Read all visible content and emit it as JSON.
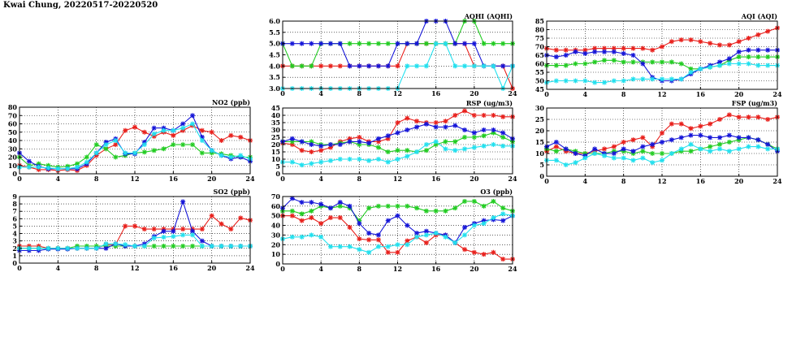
{
  "page": {
    "title": "Kwai Chung, 20220517-20220520"
  },
  "colors": {
    "red": "#e8201c",
    "green": "#22cc22",
    "blue": "#1515d8",
    "cyan": "#22e0ee"
  },
  "chart_data": [
    {
      "id": "aqhi",
      "type": "line",
      "title": "AQHI (AQHI)",
      "xlim": [
        0,
        24
      ],
      "ylim": [
        3.0,
        6.0
      ],
      "xticks": [
        "0",
        "4",
        "8",
        "12",
        "16",
        "20",
        "24"
      ],
      "yticks": [
        "3.0",
        "3.5",
        "4.0",
        "4.5",
        "5.0",
        "5.5",
        "6.0"
      ],
      "x": [
        0,
        1,
        2,
        3,
        4,
        5,
        6,
        7,
        8,
        9,
        10,
        11,
        12,
        13,
        14,
        15,
        16,
        17,
        18,
        19,
        20,
        21,
        22,
        23,
        24
      ],
      "series": [
        {
          "color": "red",
          "values": [
            4,
            4,
            4,
            4,
            4,
            4,
            4,
            4,
            4,
            4,
            4,
            4,
            4,
            5,
            5,
            5,
            5,
            5,
            5,
            5,
            4,
            4,
            4,
            4,
            3
          ]
        },
        {
          "color": "green",
          "values": [
            5,
            4,
            4,
            4,
            5,
            5,
            5,
            5,
            5,
            5,
            5,
            5,
            5,
            5,
            5,
            5,
            5,
            5,
            5,
            6,
            6,
            5,
            5,
            5,
            5
          ]
        },
        {
          "color": "blue",
          "values": [
            5,
            5,
            5,
            5,
            5,
            5,
            5,
            4,
            4,
            4,
            4,
            4,
            5,
            5,
            5,
            6,
            6,
            6,
            5,
            5,
            5,
            4,
            4,
            4,
            4
          ]
        },
        {
          "color": "cyan",
          "values": [
            3,
            3,
            3,
            3,
            3,
            3,
            3,
            3,
            3,
            3,
            3,
            3,
            3,
            4,
            4,
            4,
            5,
            5,
            4,
            4,
            4,
            4,
            4,
            3,
            4
          ]
        }
      ]
    },
    {
      "id": "aqi",
      "type": "line",
      "title": "AQI (AQI)",
      "xlim": [
        0,
        24
      ],
      "ylim": [
        45,
        85
      ],
      "xticks": [
        "0",
        "4",
        "8",
        "12",
        "16",
        "20",
        "24"
      ],
      "yticks": [
        "45",
        "50",
        "55",
        "60",
        "65",
        "70",
        "75",
        "80",
        "85"
      ],
      "x": [
        0,
        1,
        2,
        3,
        4,
        5,
        6,
        7,
        8,
        9,
        10,
        11,
        12,
        13,
        14,
        15,
        16,
        17,
        18,
        19,
        20,
        21,
        22,
        23,
        24
      ],
      "series": [
        {
          "color": "red",
          "values": [
            69,
            68,
            68,
            68,
            68,
            69,
            69,
            69,
            69,
            69,
            69,
            68,
            70,
            73,
            74,
            74,
            73,
            72,
            71,
            71,
            73,
            75,
            77,
            79,
            81
          ]
        },
        {
          "color": "green",
          "values": [
            59,
            59,
            59,
            60,
            60,
            61,
            62,
            62,
            61,
            61,
            61,
            61,
            61,
            61,
            60,
            57,
            57,
            58,
            59,
            62,
            64,
            64,
            64,
            64,
            64
          ]
        },
        {
          "color": "blue",
          "values": [
            65,
            64,
            65,
            67,
            66,
            67,
            67,
            67,
            66,
            65,
            60,
            52,
            50,
            50,
            51,
            54,
            57,
            59,
            61,
            63,
            67,
            68,
            68,
            68,
            68
          ]
        },
        {
          "color": "cyan",
          "values": [
            49,
            50,
            50,
            50,
            50,
            49,
            49,
            50,
            50,
            51,
            51,
            51,
            51,
            51,
            51,
            55,
            57,
            58,
            59,
            60,
            60,
            60,
            59,
            59,
            59
          ]
        }
      ]
    },
    {
      "id": "no2",
      "type": "line",
      "title": "NO2 (ppb)",
      "xlim": [
        0,
        24
      ],
      "ylim": [
        0,
        80
      ],
      "xticks": [
        "0",
        "4",
        "8",
        "12",
        "16",
        "20",
        "24"
      ],
      "yticks": [
        "0",
        "10",
        "20",
        "30",
        "40",
        "50",
        "60",
        "70",
        "80"
      ],
      "x": [
        0,
        1,
        2,
        3,
        4,
        5,
        6,
        7,
        8,
        9,
        10,
        11,
        12,
        13,
        14,
        15,
        16,
        17,
        18,
        19,
        20,
        21,
        22,
        23,
        24
      ],
      "series": [
        {
          "color": "red",
          "values": [
            10,
            8,
            5,
            5,
            4,
            5,
            4,
            10,
            22,
            30,
            35,
            52,
            56,
            50,
            45,
            50,
            46,
            52,
            58,
            52,
            50,
            40,
            46,
            44,
            40
          ]
        },
        {
          "color": "green",
          "values": [
            20,
            10,
            12,
            10,
            8,
            9,
            12,
            20,
            35,
            30,
            20,
            22,
            25,
            26,
            28,
            30,
            35,
            35,
            35,
            25,
            25,
            24,
            22,
            20,
            20
          ]
        },
        {
          "color": "blue",
          "values": [
            25,
            15,
            9,
            6,
            6,
            6,
            6,
            12,
            25,
            38,
            42,
            24,
            24,
            38,
            55,
            55,
            52,
            60,
            70,
            44,
            28,
            22,
            18,
            20,
            15
          ]
        },
        {
          "color": "cyan",
          "values": [
            8,
            8,
            8,
            7,
            6,
            6,
            8,
            14,
            25,
            35,
            40,
            25,
            25,
            35,
            48,
            52,
            52,
            55,
            60,
            40,
            28,
            22,
            20,
            22,
            18
          ]
        }
      ]
    },
    {
      "id": "rsp",
      "type": "line",
      "title": "RSP (ug/m3)",
      "xlim": [
        0,
        24
      ],
      "ylim": [
        0,
        45
      ],
      "xticks": [
        "0",
        "4",
        "8",
        "12",
        "16",
        "20",
        "24"
      ],
      "yticks": [
        "0",
        "5",
        "10",
        "15",
        "20",
        "25",
        "30",
        "35",
        "40",
        "45"
      ],
      "x": [
        0,
        1,
        2,
        3,
        4,
        5,
        6,
        7,
        8,
        9,
        10,
        11,
        12,
        13,
        14,
        15,
        16,
        17,
        18,
        19,
        20,
        21,
        22,
        23,
        24
      ],
      "series": [
        {
          "color": "red",
          "values": [
            21,
            20,
            16,
            15,
            16,
            18,
            22,
            24,
            25,
            22,
            22,
            24,
            35,
            38,
            36,
            35,
            35,
            36,
            40,
            43,
            40,
            40,
            40,
            39,
            39
          ]
        },
        {
          "color": "green",
          "values": [
            22,
            22,
            22,
            22,
            20,
            20,
            21,
            22,
            20,
            20,
            18,
            15,
            16,
            16,
            15,
            16,
            20,
            22,
            22,
            25,
            25,
            26,
            28,
            25,
            22
          ]
        },
        {
          "color": "blue",
          "values": [
            22,
            24,
            22,
            20,
            19,
            20,
            20,
            22,
            22,
            21,
            24,
            26,
            28,
            30,
            32,
            34,
            32,
            32,
            33,
            30,
            28,
            30,
            30,
            28,
            24
          ]
        },
        {
          "color": "cyan",
          "values": [
            8,
            8,
            6,
            7,
            8,
            9,
            10,
            10,
            10,
            9,
            10,
            8,
            10,
            12,
            15,
            20,
            22,
            17,
            16,
            17,
            18,
            19,
            20,
            19,
            19
          ]
        }
      ]
    },
    {
      "id": "fsp",
      "type": "line",
      "title": "FSP (ug/m3)",
      "xlim": [
        0,
        24
      ],
      "ylim": [
        0,
        30
      ],
      "xticks": [
        "0",
        "4",
        "8",
        "12",
        "16",
        "20",
        "24"
      ],
      "yticks": [
        "0",
        "5",
        "10",
        "15",
        "20",
        "25",
        "30"
      ],
      "x": [
        0,
        1,
        2,
        3,
        4,
        5,
        6,
        7,
        8,
        9,
        10,
        11,
        12,
        13,
        14,
        15,
        16,
        17,
        18,
        19,
        20,
        21,
        22,
        23,
        24
      ],
      "series": [
        {
          "color": "red",
          "values": [
            11,
            13,
            11,
            10,
            10,
            11,
            12,
            13,
            15,
            16,
            17,
            13,
            19,
            23,
            23,
            21,
            22,
            23,
            25,
            27,
            26,
            26,
            26,
            25,
            26
          ]
        },
        {
          "color": "green",
          "values": [
            12,
            11,
            12,
            11,
            10,
            10,
            10,
            11,
            11,
            10,
            11,
            10,
            10,
            10,
            11,
            11,
            12,
            13,
            14,
            15,
            16,
            17,
            16,
            14,
            12
          ]
        },
        {
          "color": "blue",
          "values": [
            13,
            15,
            12,
            10,
            9,
            12,
            10,
            10,
            12,
            11,
            13,
            14,
            15,
            16,
            17,
            18,
            18,
            17,
            17,
            18,
            17,
            17,
            16,
            14,
            11
          ]
        },
        {
          "color": "cyan",
          "values": [
            7,
            7,
            5,
            6,
            8,
            10,
            9,
            8,
            8,
            7,
            8,
            6,
            7,
            10,
            12,
            14,
            12,
            11,
            12,
            11,
            12,
            13,
            13,
            12,
            12
          ]
        }
      ]
    },
    {
      "id": "so2",
      "type": "line",
      "title": "SO2 (ppb)",
      "xlim": [
        0,
        24
      ],
      "ylim": [
        0,
        9
      ],
      "xticks": [
        "0",
        "4",
        "8",
        "12",
        "16",
        "20",
        "24"
      ],
      "yticks": [
        "0",
        "1",
        "2",
        "3",
        "4",
        "5",
        "6",
        "7",
        "8",
        "9"
      ],
      "x": [
        0,
        1,
        2,
        3,
        4,
        5,
        6,
        7,
        8,
        9,
        10,
        11,
        12,
        13,
        14,
        15,
        16,
        17,
        18,
        19,
        20,
        21,
        22,
        23,
        24
      ],
      "series": [
        {
          "color": "red",
          "values": [
            2.3,
            2.3,
            2.3,
            2,
            2,
            2,
            2,
            2,
            2,
            2.5,
            2.5,
            5,
            5,
            4.6,
            4.6,
            4.6,
            4.6,
            4.6,
            4.6,
            4.6,
            6.4,
            5.3,
            4.6,
            6.1,
            5.8
          ]
        },
        {
          "color": "green",
          "values": [
            2,
            2,
            2,
            2,
            2,
            2,
            2.3,
            2.3,
            2.3,
            2.3,
            2.3,
            2.3,
            2.3,
            2.3,
            2.3,
            2.3,
            2.3,
            2.3,
            2.3,
            2.3,
            2.3,
            2.3,
            2.3,
            2.3,
            2.3
          ]
        },
        {
          "color": "blue",
          "values": [
            1.7,
            1.7,
            1.7,
            1.9,
            1.9,
            1.9,
            2,
            2,
            2,
            2,
            2.6,
            2.3,
            2.3,
            2.6,
            3.6,
            4.3,
            4.3,
            8.3,
            4.3,
            3,
            2.3,
            2.3,
            2.3,
            2.3,
            2.3
          ]
        },
        {
          "color": "cyan",
          "values": [
            2,
            2,
            2,
            2,
            2,
            2,
            2,
            2,
            2,
            2.6,
            2.6,
            2.5,
            2.3,
            2.3,
            3.4,
            3.5,
            3.6,
            3.8,
            3.8,
            2.3,
            2.3,
            2.3,
            2.3,
            2.3,
            2.3
          ]
        }
      ]
    },
    {
      "id": "o3",
      "type": "line",
      "title": "O3 (ppb)",
      "xlim": [
        0,
        24
      ],
      "ylim": [
        0,
        70
      ],
      "xticks": [
        "0",
        "4",
        "8",
        "12",
        "16",
        "20",
        "24"
      ],
      "yticks": [
        "0",
        "10",
        "20",
        "30",
        "40",
        "50",
        "60",
        "70"
      ],
      "x": [
        0,
        1,
        2,
        3,
        4,
        5,
        6,
        7,
        8,
        9,
        10,
        11,
        12,
        13,
        14,
        15,
        16,
        17,
        18,
        19,
        20,
        21,
        22,
        23,
        24
      ],
      "series": [
        {
          "color": "red",
          "values": [
            50,
            50,
            45,
            48,
            42,
            48,
            48,
            38,
            26,
            25,
            25,
            12,
            12,
            24,
            28,
            22,
            30,
            30,
            22,
            15,
            12,
            10,
            12,
            5,
            5
          ]
        },
        {
          "color": "green",
          "values": [
            55,
            55,
            52,
            55,
            60,
            58,
            60,
            58,
            45,
            58,
            60,
            60,
            60,
            60,
            58,
            55,
            55,
            55,
            58,
            65,
            65,
            60,
            65,
            58,
            55
          ]
        },
        {
          "color": "blue",
          "values": [
            58,
            68,
            64,
            64,
            62,
            58,
            64,
            60,
            42,
            32,
            30,
            45,
            50,
            40,
            32,
            34,
            32,
            30,
            22,
            38,
            42,
            45,
            46,
            45,
            50
          ]
        },
        {
          "color": "cyan",
          "values": [
            26,
            28,
            28,
            30,
            28,
            18,
            18,
            18,
            15,
            12,
            18,
            18,
            20,
            20,
            28,
            30,
            32,
            28,
            22,
            30,
            40,
            42,
            48,
            52,
            50
          ]
        }
      ]
    }
  ]
}
